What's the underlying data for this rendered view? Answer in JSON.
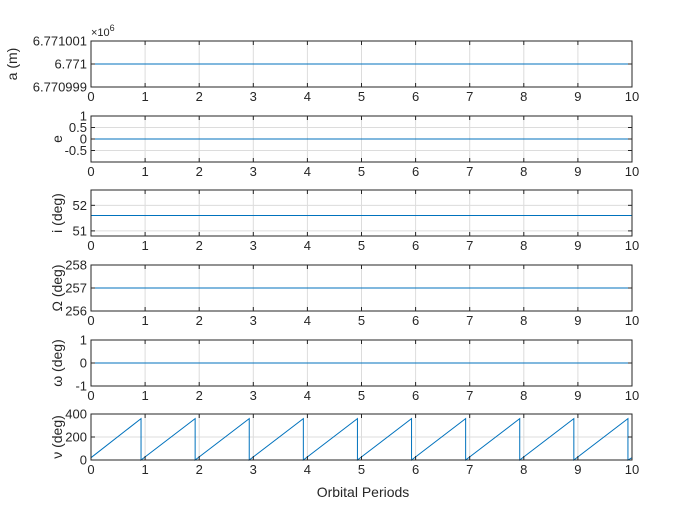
{
  "figure": {
    "background": "#ffffff",
    "axes_color": "#262626",
    "grid_color": "#dcdcdc",
    "line_color": "#0072bd",
    "xlabel": "Orbital Periods"
  },
  "chart_data": [
    {
      "type": "line",
      "ylabel": "a (m)",
      "exponent_label": "×10",
      "exponent": "6",
      "xlim": [
        0,
        10
      ],
      "ylim": [
        6.770999,
        6.771001
      ],
      "xticks": [
        0,
        1,
        2,
        3,
        4,
        5,
        6,
        7,
        8,
        9,
        10
      ],
      "xtick_labels": [
        "0",
        "1",
        "2",
        "3",
        "4",
        "5",
        "6",
        "7",
        "8",
        "9",
        "10"
      ],
      "yticks": [
        6.770999,
        6.771,
        6.771001
      ],
      "ytick_labels": [
        "6.770999",
        "6.771",
        "6.771001"
      ],
      "grid": true,
      "series": [
        {
          "x": [
            0,
            10
          ],
          "y": [
            6.771,
            6.771
          ]
        }
      ]
    },
    {
      "type": "line",
      "ylabel": "e",
      "xlim": [
        0,
        10
      ],
      "ylim": [
        -1,
        1
      ],
      "xticks": [
        0,
        1,
        2,
        3,
        4,
        5,
        6,
        7,
        8,
        9,
        10
      ],
      "xtick_labels": [
        "0",
        "1",
        "2",
        "3",
        "4",
        "5",
        "6",
        "7",
        "8",
        "9",
        "10"
      ],
      "yticks": [
        -0.5,
        0,
        0.5,
        1
      ],
      "ytick_labels": [
        "-0.5",
        "0",
        "0.5",
        "1"
      ],
      "grid": true,
      "series": [
        {
          "x": [
            0,
            10
          ],
          "y": [
            0,
            0
          ]
        }
      ]
    },
    {
      "type": "line",
      "ylabel": "i (deg)",
      "xlim": [
        0,
        10
      ],
      "ylim": [
        50.8,
        52.6
      ],
      "xticks": [
        0,
        1,
        2,
        3,
        4,
        5,
        6,
        7,
        8,
        9,
        10
      ],
      "xtick_labels": [
        "0",
        "1",
        "2",
        "3",
        "4",
        "5",
        "6",
        "7",
        "8",
        "9",
        "10"
      ],
      "yticks": [
        51,
        52
      ],
      "ytick_labels": [
        "51",
        "52"
      ],
      "grid": true,
      "series": [
        {
          "x": [
            0,
            10
          ],
          "y": [
            51.6,
            51.6
          ]
        }
      ]
    },
    {
      "type": "line",
      "ylabel": "Ω (deg)",
      "xlim": [
        0,
        10
      ],
      "ylim": [
        256,
        258
      ],
      "xticks": [
        0,
        1,
        2,
        3,
        4,
        5,
        6,
        7,
        8,
        9,
        10
      ],
      "xtick_labels": [
        "0",
        "1",
        "2",
        "3",
        "4",
        "5",
        "6",
        "7",
        "8",
        "9",
        "10"
      ],
      "yticks": [
        256,
        257,
        258
      ],
      "ytick_labels": [
        "256",
        "257",
        "258"
      ],
      "grid": true,
      "series": [
        {
          "x": [
            0,
            10
          ],
          "y": [
            257,
            257
          ]
        }
      ]
    },
    {
      "type": "line",
      "ylabel": "ω (deg)",
      "xlim": [
        0,
        10
      ],
      "ylim": [
        -1,
        1
      ],
      "xticks": [
        0,
        1,
        2,
        3,
        4,
        5,
        6,
        7,
        8,
        9,
        10
      ],
      "xtick_labels": [
        "0",
        "1",
        "2",
        "3",
        "4",
        "5",
        "6",
        "7",
        "8",
        "9",
        "10"
      ],
      "yticks": [
        -1,
        0,
        1
      ],
      "ytick_labels": [
        "-1",
        "0",
        "1"
      ],
      "grid": true,
      "series": [
        {
          "x": [
            0,
            10
          ],
          "y": [
            0,
            0
          ]
        }
      ]
    },
    {
      "type": "line",
      "ylabel": "ν (deg)",
      "xlim": [
        0,
        10
      ],
      "ylim": [
        0,
        400
      ],
      "xticks": [
        0,
        1,
        2,
        3,
        4,
        5,
        6,
        7,
        8,
        9,
        10
      ],
      "xtick_labels": [
        "0",
        "1",
        "2",
        "3",
        "4",
        "5",
        "6",
        "7",
        "8",
        "9",
        "10"
      ],
      "yticks": [
        0,
        200,
        400
      ],
      "ytick_labels": [
        "0",
        "200",
        "400"
      ],
      "grid": true,
      "series": [
        {
          "x": [
            0,
            0.925,
            0.925,
            1.925,
            1.925,
            2.925,
            2.925,
            3.925,
            3.925,
            4.925,
            4.925,
            5.925,
            5.925,
            6.925,
            6.925,
            7.925,
            7.925,
            8.925,
            8.925,
            9.925,
            9.925,
            10
          ],
          "y": [
            20,
            360,
            0,
            360,
            0,
            360,
            0,
            360,
            0,
            360,
            0,
            360,
            0,
            360,
            0,
            360,
            0,
            360,
            0,
            360,
            0,
            20
          ]
        }
      ]
    }
  ]
}
